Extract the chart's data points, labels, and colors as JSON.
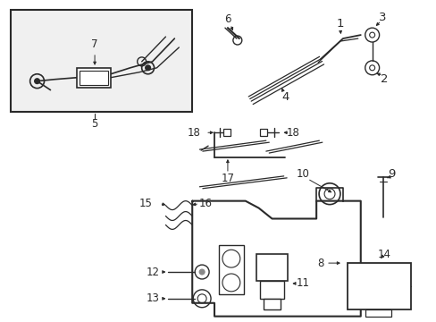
{
  "bg_color": "#ffffff",
  "line_color": "#2a2a2a",
  "fig_width": 4.89,
  "fig_height": 3.6,
  "dpi": 100,
  "font_size": 7.5,
  "bold_font_size": 9
}
